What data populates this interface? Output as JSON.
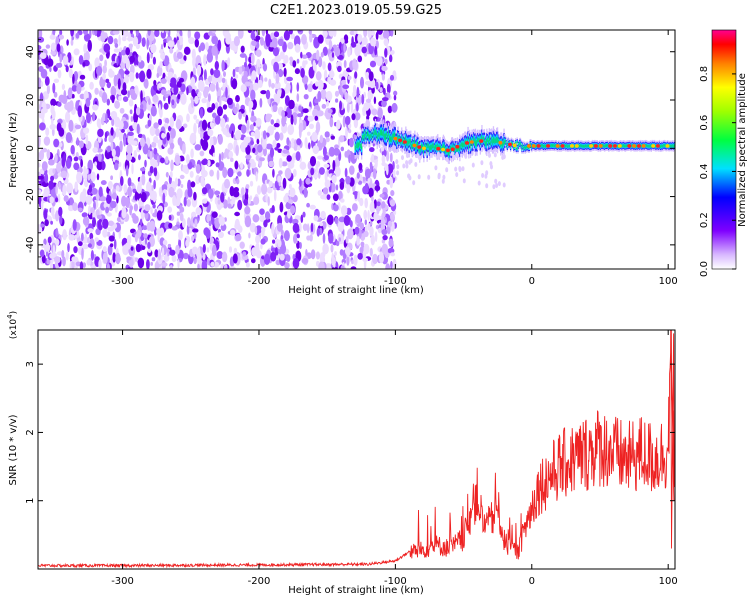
{
  "title": "C2E1.2023.019.05.59.G25",
  "chart_data": [
    {
      "type": "heatmap",
      "xlabel": "Height of straight line (km)",
      "ylabel": "Frequency (Hz)",
      "xlim": [
        -362,
        105
      ],
      "ylim": [
        -50,
        49
      ],
      "xticks": [
        -300,
        -200,
        -100,
        0,
        100
      ],
      "yticks": [
        -40,
        -20,
        0,
        20,
        40
      ],
      "noise_region_x": [
        -362,
        -100
      ],
      "signal_band": {
        "x": [
          -125,
          -110,
          -100,
          -90,
          -80,
          -70,
          -60,
          -50,
          -40,
          -30,
          -20,
          -10,
          0,
          20,
          40,
          60,
          80,
          100,
          105
        ],
        "center_freq": [
          5,
          6,
          4,
          2,
          0,
          0,
          -1,
          2,
          3,
          3,
          2,
          1,
          1,
          1,
          1,
          1,
          1,
          1,
          1
        ]
      },
      "colorbar": {
        "label": "Normalized spectral amplitude",
        "range": [
          0,
          0.98
        ],
        "ticks": [
          0.0,
          0.2,
          0.4,
          0.6,
          0.8
        ],
        "tick_labels": [
          "0.0",
          "0.2",
          "0.4",
          "0.6",
          "0.8"
        ]
      },
      "grid": false
    },
    {
      "type": "line",
      "xlabel": "Height of straight line (km)",
      "ylabel": "SNR (10 * v/v)",
      "scale_label": "(x10",
      "scale_exp": "4",
      "scale_close": ")",
      "xlim": [
        -362,
        105
      ],
      "ylim": [
        0,
        3.5
      ],
      "xticks": [
        -300,
        -200,
        -100,
        0,
        100
      ],
      "yticks": [
        1,
        2,
        3
      ],
      "color": "#ee2222",
      "series": [
        {
          "x": [
            -362,
            -300,
            -200,
            -120,
            -100,
            -90,
            -80,
            -70,
            -60,
            -50,
            -45,
            -40,
            -35,
            -30,
            -25,
            -20,
            -15,
            -10,
            -5,
            0,
            5,
            10,
            20,
            30,
            40,
            50,
            60,
            70,
            80,
            90,
            100,
            102,
            104
          ],
          "y": [
            0.05,
            0.05,
            0.06,
            0.07,
            0.12,
            0.25,
            0.28,
            0.35,
            0.3,
            0.45,
            0.8,
            1.1,
            0.6,
            0.7,
            0.9,
            0.4,
            0.3,
            0.25,
            0.6,
            0.9,
            1.2,
            1.3,
            1.5,
            1.6,
            1.7,
            1.8,
            1.7,
            1.6,
            1.7,
            1.6,
            1.75,
            3.4,
            1.2
          ]
        }
      ],
      "grid": false
    }
  ]
}
